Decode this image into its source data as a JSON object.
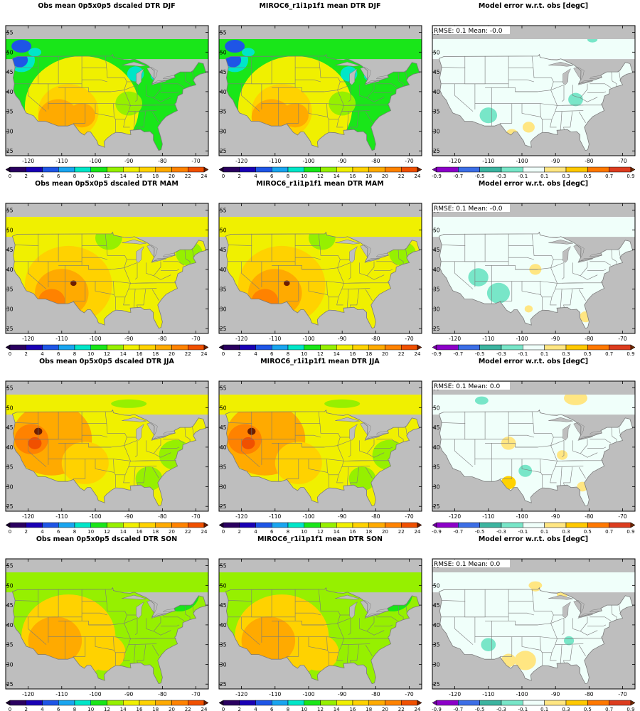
{
  "rows": [
    {
      "season": "DJF",
      "titles": [
        "Obs mean 0p5x0p5 dscaled DTR DJF",
        "MIROC6_r1i1p1f1 mean DTR DJF",
        "Model error w.r.t. obs [degC]"
      ],
      "stats": "RMSE: 0.1  Mean: -0.0"
    },
    {
      "season": "MAM",
      "titles": [
        "Obs mean 0p5x0p5 dscaled DTR MAM",
        "MIROC6_r1i1p1f1 mean DTR MAM",
        "Model error w.r.t. obs [degC]"
      ],
      "stats": "RMSE: 0.1  Mean: -0.0"
    },
    {
      "season": "JJA",
      "titles": [
        "Obs mean 0p5x0p5 dscaled DTR JJA",
        "MIROC6_r1i1p1f1 mean DTR JJA",
        "Model error w.r.t. obs [degC]"
      ],
      "stats": "RMSE: 0.1  Mean: 0.0"
    },
    {
      "season": "SON",
      "titles": [
        "Obs mean 0p5x0p5 dscaled DTR SON",
        "MIROC6_r1i1p1f1 mean DTR SON",
        "Model error w.r.t. obs [degC]"
      ],
      "stats": "RMSE: 0.1  Mean: 0.0"
    }
  ],
  "axes": {
    "lon_ticks": [
      "-120",
      "-110",
      "-100",
      "-90",
      "-80",
      "-70"
    ],
    "lat_ticks": [
      "55",
      "50",
      "45",
      "40",
      "35",
      "30",
      "25"
    ]
  },
  "dtr_colorbar": {
    "labels": [
      "0",
      "2",
      "4",
      "6",
      "8",
      "10",
      "12",
      "14",
      "16",
      "18",
      "20",
      "22",
      "24"
    ],
    "colors": [
      "#2a0060",
      "#1a00b4",
      "#1e55e6",
      "#19a5f0",
      "#00e6c8",
      "#19e619",
      "#96f000",
      "#f0f000",
      "#ffd200",
      "#ffaa00",
      "#ff8200",
      "#f05000"
    ],
    "under_color": "#1a0030",
    "over_color": "#6e1e00"
  },
  "err_colorbar": {
    "labels": [
      "-0.9",
      "-0.7",
      "-0.5",
      "-0.3",
      "-0.1",
      "0.1",
      "0.3",
      "0.5",
      "0.7",
      "0.9"
    ],
    "colors": [
      "#8c00c8",
      "#3c6ee6",
      "#3cb4a0",
      "#78e6c8",
      "#f0fffa",
      "#ffe682",
      "#ffc800",
      "#ff7800",
      "#dc3c1e"
    ],
    "under_color": "#6e00a0",
    "over_color": "#6e2800"
  },
  "map_colors": {
    "ocean": "#bebebe",
    "border": "#7a7a7a",
    "frame": "#000000",
    "error_base": "#f0fffa"
  }
}
